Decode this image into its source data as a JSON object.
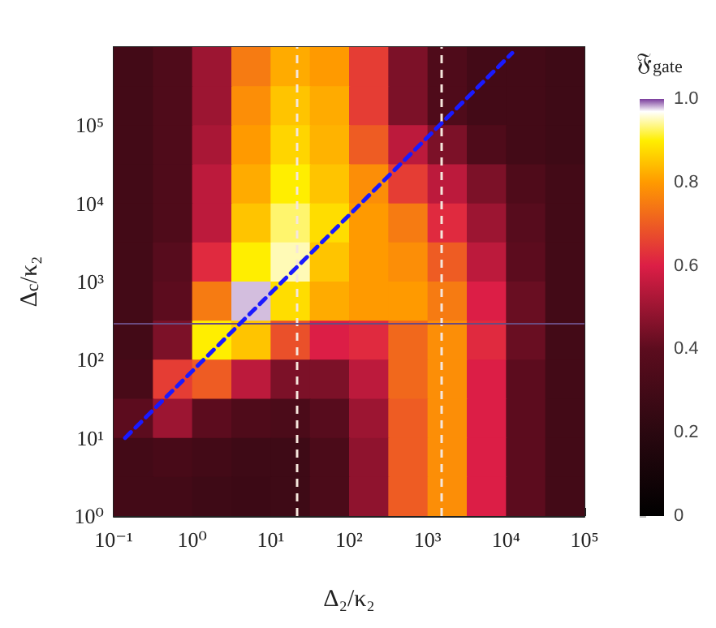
{
  "chart_data": {
    "type": "heatmap",
    "xlabel": "Δ₂/κ₂",
    "ylabel": "Δ$_{c}$/κ₂",
    "clabel": "𝔉$_{gate}$",
    "log": "xy",
    "xlim": [
      0.1,
      100000
    ],
    "ylim": [
      1,
      1000000
    ],
    "xticks": [
      {
        "value": 0.1,
        "label": "10⁻¹"
      },
      {
        "value": 1,
        "label": "10⁰"
      },
      {
        "value": 10,
        "label": "10¹"
      },
      {
        "value": 100,
        "label": "10²"
      },
      {
        "value": 1000,
        "label": "10³"
      },
      {
        "value": 10000,
        "label": "10⁴"
      },
      {
        "value": 100000,
        "label": "10⁵"
      }
    ],
    "yticks": [
      {
        "value": 1,
        "label": "10⁰"
      },
      {
        "value": 10,
        "label": "10¹"
      },
      {
        "value": 100,
        "label": "10²"
      },
      {
        "value": 1000,
        "label": "10³"
      },
      {
        "value": 10000,
        "label": "10⁴"
      },
      {
        "value": 100000,
        "label": "10⁵"
      }
    ],
    "cells": [
      [
        0.3,
        0.35,
        0.5,
        0.75,
        0.82,
        0.8,
        0.65,
        0.45,
        0.35,
        0.3,
        0.3,
        0.28
      ],
      [
        0.3,
        0.35,
        0.5,
        0.78,
        0.85,
        0.82,
        0.65,
        0.45,
        0.35,
        0.3,
        0.3,
        0.28
      ],
      [
        0.3,
        0.35,
        0.52,
        0.8,
        0.87,
        0.83,
        0.7,
        0.55,
        0.45,
        0.35,
        0.3,
        0.28
      ],
      [
        0.3,
        0.35,
        0.55,
        0.82,
        0.9,
        0.85,
        0.78,
        0.65,
        0.55,
        0.45,
        0.35,
        0.3
      ],
      [
        0.3,
        0.35,
        0.55,
        0.85,
        0.93,
        0.88,
        0.8,
        0.75,
        0.62,
        0.5,
        0.38,
        0.3
      ],
      [
        0.3,
        0.38,
        0.62,
        0.9,
        0.95,
        0.85,
        0.8,
        0.78,
        0.7,
        0.55,
        0.4,
        0.3
      ],
      [
        0.3,
        0.4,
        0.75,
        0.98,
        0.88,
        0.82,
        0.8,
        0.8,
        0.75,
        0.6,
        0.42,
        0.3
      ],
      [
        0.3,
        0.45,
        0.9,
        0.85,
        0.68,
        0.6,
        0.62,
        0.72,
        0.78,
        0.62,
        0.42,
        0.3
      ],
      [
        0.32,
        0.65,
        0.7,
        0.55,
        0.45,
        0.45,
        0.55,
        0.72,
        0.78,
        0.6,
        0.4,
        0.3
      ],
      [
        0.4,
        0.5,
        0.4,
        0.35,
        0.33,
        0.38,
        0.5,
        0.7,
        0.78,
        0.6,
        0.4,
        0.3
      ],
      [
        0.3,
        0.32,
        0.3,
        0.28,
        0.28,
        0.33,
        0.48,
        0.7,
        0.78,
        0.6,
        0.4,
        0.3
      ],
      [
        0.3,
        0.3,
        0.28,
        0.27,
        0.28,
        0.33,
        0.48,
        0.7,
        0.78,
        0.6,
        0.4,
        0.3
      ]
    ],
    "clim": [
      0,
      1
    ],
    "cticks": [
      0,
      0.2,
      0.4,
      0.6,
      0.8,
      {
        "value": 1,
        "label": "1.0"
      }
    ],
    "ref_lines": [
      {
        "axis": "x",
        "value": 22,
        "color": "#f5e6dc",
        "line_style": "dashed"
      },
      {
        "axis": "x",
        "value": 1500,
        "color": "#f5e6dc",
        "line_style": "dashed"
      },
      {
        "axis": "y",
        "value": 290,
        "color": "#6a4a80",
        "line_style": "solid"
      }
    ],
    "series": [
      {
        "type": "line",
        "x": [
          0.14,
          12000
        ],
        "values": [
          10,
          840000
        ],
        "color": "#1a1aff",
        "line_style": "dashed"
      }
    ]
  }
}
